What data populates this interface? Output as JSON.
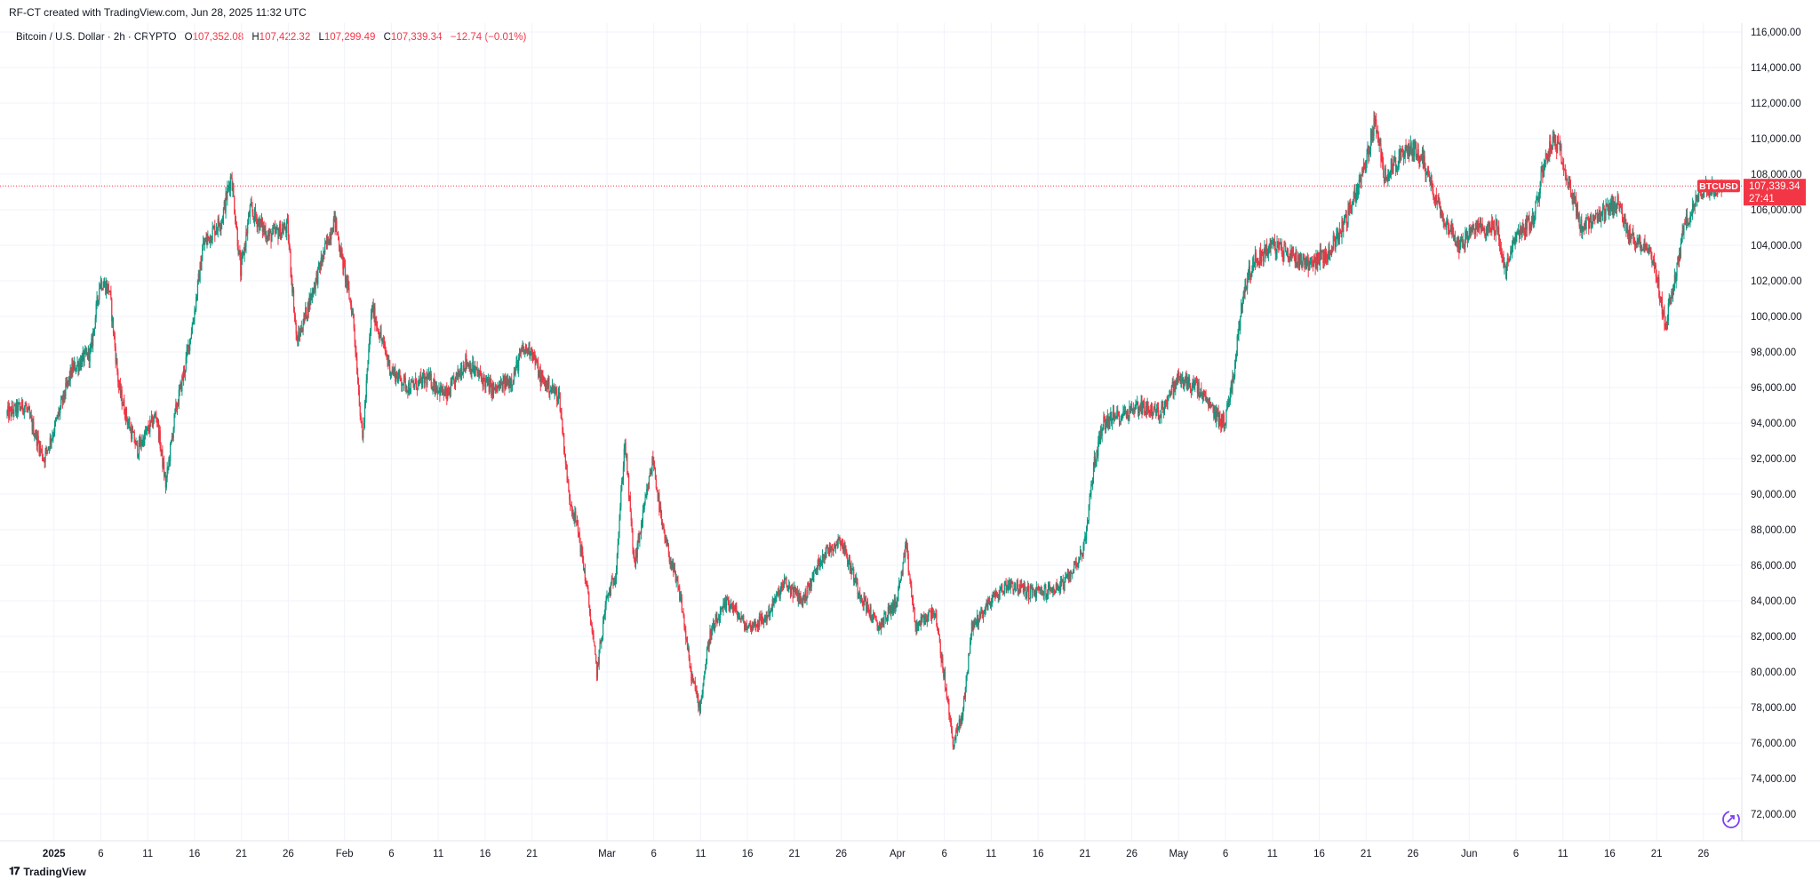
{
  "header": {
    "caption": "RF-CT created with TradingView.com, Jun 28, 2025 11:32 UTC"
  },
  "legend": {
    "symbol": "Bitcoin / U.S. Dollar · 2h · CRYPTO",
    "o_label": "O",
    "o_value": "107,352.08",
    "h_label": "H",
    "h_value": "107,422.32",
    "l_label": "L",
    "l_value": "107,299.49",
    "c_label": "C",
    "c_value": "107,339.34",
    "change": "−12.74 (−0.01%)"
  },
  "footer": {
    "brand": "TradingView"
  },
  "price_tag": {
    "ticker": "BTCUSD",
    "price": "107,339.34",
    "countdown": "27:41",
    "value": 107339.34
  },
  "colors": {
    "up": "#089981",
    "down": "#f23645",
    "grid": "#f0f3fa",
    "axis_text": "#131722",
    "price_line": "#f23645"
  },
  "chart_data": {
    "type": "candlestick",
    "title": "Bitcoin / U.S. Dollar · 2h · CRYPTO",
    "interval": "2h",
    "ylim": [
      70500,
      116500
    ],
    "y_ticks": [
      72000,
      74000,
      76000,
      78000,
      80000,
      82000,
      84000,
      86000,
      88000,
      90000,
      92000,
      94000,
      96000,
      98000,
      100000,
      102000,
      104000,
      106000,
      108000,
      110000,
      112000,
      114000,
      116000
    ],
    "y_tick_labels": [
      "72,000.00",
      "74,000.00",
      "76,000.00",
      "78,000.00",
      "80,000.00",
      "82,000.00",
      "84,000.00",
      "86,000.00",
      "88,000.00",
      "90,000.00",
      "92,000.00",
      "94,000.00",
      "96,000.00",
      "98,000.00",
      "100,000.00",
      "102,000.00",
      "104,000.00",
      "106,000.00",
      "108,000.00",
      "110,000.00",
      "112,000.00",
      "114,000.00",
      "116,000.00"
    ],
    "x_start": "2024-12-27",
    "x_end": "2025-06-28",
    "x_ticks": [
      {
        "date": "2025-01-01",
        "label": "2025",
        "bold": true
      },
      {
        "date": "2025-01-06",
        "label": "6"
      },
      {
        "date": "2025-01-11",
        "label": "11"
      },
      {
        "date": "2025-01-16",
        "label": "16"
      },
      {
        "date": "2025-01-21",
        "label": "21"
      },
      {
        "date": "2025-01-26",
        "label": "26"
      },
      {
        "date": "2025-02-01",
        "label": "Feb"
      },
      {
        "date": "2025-02-06",
        "label": "6"
      },
      {
        "date": "2025-02-11",
        "label": "11"
      },
      {
        "date": "2025-02-16",
        "label": "16"
      },
      {
        "date": "2025-02-21",
        "label": "21"
      },
      {
        "date": "2025-03-01",
        "label": "Mar"
      },
      {
        "date": "2025-03-06",
        "label": "6"
      },
      {
        "date": "2025-03-11",
        "label": "11"
      },
      {
        "date": "2025-03-16",
        "label": "16"
      },
      {
        "date": "2025-03-21",
        "label": "21"
      },
      {
        "date": "2025-03-26",
        "label": "26"
      },
      {
        "date": "2025-04-01",
        "label": "Apr"
      },
      {
        "date": "2025-04-06",
        "label": "6"
      },
      {
        "date": "2025-04-11",
        "label": "11"
      },
      {
        "date": "2025-04-16",
        "label": "16"
      },
      {
        "date": "2025-04-21",
        "label": "21"
      },
      {
        "date": "2025-04-26",
        "label": "26"
      },
      {
        "date": "2025-05-01",
        "label": "May"
      },
      {
        "date": "2025-05-06",
        "label": "6"
      },
      {
        "date": "2025-05-11",
        "label": "11"
      },
      {
        "date": "2025-05-16",
        "label": "16"
      },
      {
        "date": "2025-05-21",
        "label": "21"
      },
      {
        "date": "2025-05-26",
        "label": "26"
      },
      {
        "date": "2025-06-01",
        "label": "Jun"
      },
      {
        "date": "2025-06-06",
        "label": "6"
      },
      {
        "date": "2025-06-11",
        "label": "11"
      },
      {
        "date": "2025-06-16",
        "label": "16"
      },
      {
        "date": "2025-06-21",
        "label": "21"
      },
      {
        "date": "2025-06-26",
        "label": "26"
      }
    ],
    "price_path": [
      [
        "2024-12-27",
        94500
      ],
      [
        "2024-12-29",
        95000
      ],
      [
        "2024-12-31",
        92000
      ],
      [
        "2025-01-01",
        93500
      ],
      [
        "2025-01-03",
        97000
      ],
      [
        "2025-01-05",
        98000
      ],
      [
        "2025-01-06",
        102000
      ],
      [
        "2025-01-07",
        101500
      ],
      [
        "2025-01-08",
        96000
      ],
      [
        "2025-01-09",
        94000
      ],
      [
        "2025-01-10",
        92500
      ],
      [
        "2025-01-12",
        94500
      ],
      [
        "2025-01-13",
        90500
      ],
      [
        "2025-01-14",
        94500
      ],
      [
        "2025-01-15",
        97000
      ],
      [
        "2025-01-16",
        100000
      ],
      [
        "2025-01-17",
        104000
      ],
      [
        "2025-01-19",
        105500
      ],
      [
        "2025-01-20",
        108000
      ],
      [
        "2025-01-21",
        102500
      ],
      [
        "2025-01-22",
        106000
      ],
      [
        "2025-01-24",
        104500
      ],
      [
        "2025-01-26",
        105000
      ],
      [
        "2025-01-27",
        98500
      ],
      [
        "2025-01-29",
        102000
      ],
      [
        "2025-01-31",
        105500
      ],
      [
        "2025-02-02",
        100000
      ],
      [
        "2025-02-03",
        93000
      ],
      [
        "2025-02-04",
        100500
      ],
      [
        "2025-02-06",
        97000
      ],
      [
        "2025-02-08",
        96000
      ],
      [
        "2025-02-10",
        96500
      ],
      [
        "2025-02-12",
        95500
      ],
      [
        "2025-02-14",
        97500
      ],
      [
        "2025-02-17",
        95800
      ],
      [
        "2025-02-19",
        96500
      ],
      [
        "2025-02-20",
        98000
      ],
      [
        "2025-02-21",
        98200
      ],
      [
        "2025-02-22",
        96500
      ],
      [
        "2025-02-24",
        95500
      ],
      [
        "2025-02-25",
        90000
      ],
      [
        "2025-02-26",
        88000
      ],
      [
        "2025-02-27",
        84500
      ],
      [
        "2025-02-28",
        80000
      ],
      [
        "2025-03-01",
        84000
      ],
      [
        "2025-03-02",
        85500
      ],
      [
        "2025-03-03",
        93000
      ],
      [
        "2025-03-04",
        86000
      ],
      [
        "2025-03-05",
        89000
      ],
      [
        "2025-03-06",
        92000
      ],
      [
        "2025-03-07",
        88000
      ],
      [
        "2025-03-09",
        84000
      ],
      [
        "2025-03-10",
        80000
      ],
      [
        "2025-03-11",
        78000
      ],
      [
        "2025-03-12",
        82000
      ],
      [
        "2025-03-14",
        84000
      ],
      [
        "2025-03-16",
        82500
      ],
      [
        "2025-03-18",
        83000
      ],
      [
        "2025-03-20",
        85000
      ],
      [
        "2025-03-22",
        84000
      ],
      [
        "2025-03-24",
        86500
      ],
      [
        "2025-03-26",
        87500
      ],
      [
        "2025-03-28",
        84500
      ],
      [
        "2025-03-30",
        82500
      ],
      [
        "2025-04-01",
        84000
      ],
      [
        "2025-04-02",
        87000
      ],
      [
        "2025-04-03",
        82500
      ],
      [
        "2025-04-05",
        83500
      ],
      [
        "2025-04-06",
        80000
      ],
      [
        "2025-04-07",
        76000
      ],
      [
        "2025-04-08",
        77500
      ],
      [
        "2025-04-09",
        82500
      ],
      [
        "2025-04-11",
        84000
      ],
      [
        "2025-04-13",
        85000
      ],
      [
        "2025-04-15",
        84500
      ],
      [
        "2025-04-17",
        84500
      ],
      [
        "2025-04-19",
        85000
      ],
      [
        "2025-04-21",
        87000
      ],
      [
        "2025-04-22",
        91500
      ],
      [
        "2025-04-23",
        94000
      ],
      [
        "2025-04-25",
        94500
      ],
      [
        "2025-04-27",
        95000
      ],
      [
        "2025-04-29",
        94500
      ],
      [
        "2025-05-01",
        96500
      ],
      [
        "2025-05-03",
        96000
      ],
      [
        "2025-05-05",
        94500
      ],
      [
        "2025-05-06",
        94000
      ],
      [
        "2025-05-07",
        97000
      ],
      [
        "2025-05-08",
        101500
      ],
      [
        "2025-05-09",
        103000
      ],
      [
        "2025-05-11",
        104000
      ],
      [
        "2025-05-13",
        103500
      ],
      [
        "2025-05-15",
        103000
      ],
      [
        "2025-05-17",
        103500
      ],
      [
        "2025-05-19",
        105500
      ],
      [
        "2025-05-21",
        108500
      ],
      [
        "2025-05-22",
        111000
      ],
      [
        "2025-05-23",
        108000
      ],
      [
        "2025-05-24",
        108500
      ],
      [
        "2025-05-26",
        109500
      ],
      [
        "2025-05-27",
        109000
      ],
      [
        "2025-05-29",
        106000
      ],
      [
        "2025-05-31",
        104000
      ],
      [
        "2025-06-02",
        105000
      ],
      [
        "2025-06-04",
        105000
      ],
      [
        "2025-06-05",
        102500
      ],
      [
        "2025-06-06",
        104500
      ],
      [
        "2025-06-08",
        105500
      ],
      [
        "2025-06-09",
        108500
      ],
      [
        "2025-06-10",
        110000
      ],
      [
        "2025-06-11",
        109000
      ],
      [
        "2025-06-13",
        105000
      ],
      [
        "2025-06-15",
        105500
      ],
      [
        "2025-06-17",
        106500
      ],
      [
        "2025-06-18",
        104500
      ],
      [
        "2025-06-20",
        104000
      ],
      [
        "2025-06-21",
        102500
      ],
      [
        "2025-06-22",
        99500
      ],
      [
        "2025-06-23",
        102000
      ],
      [
        "2025-06-24",
        105000
      ],
      [
        "2025-06-26",
        107200
      ],
      [
        "2025-06-28",
        107339
      ]
    ]
  }
}
